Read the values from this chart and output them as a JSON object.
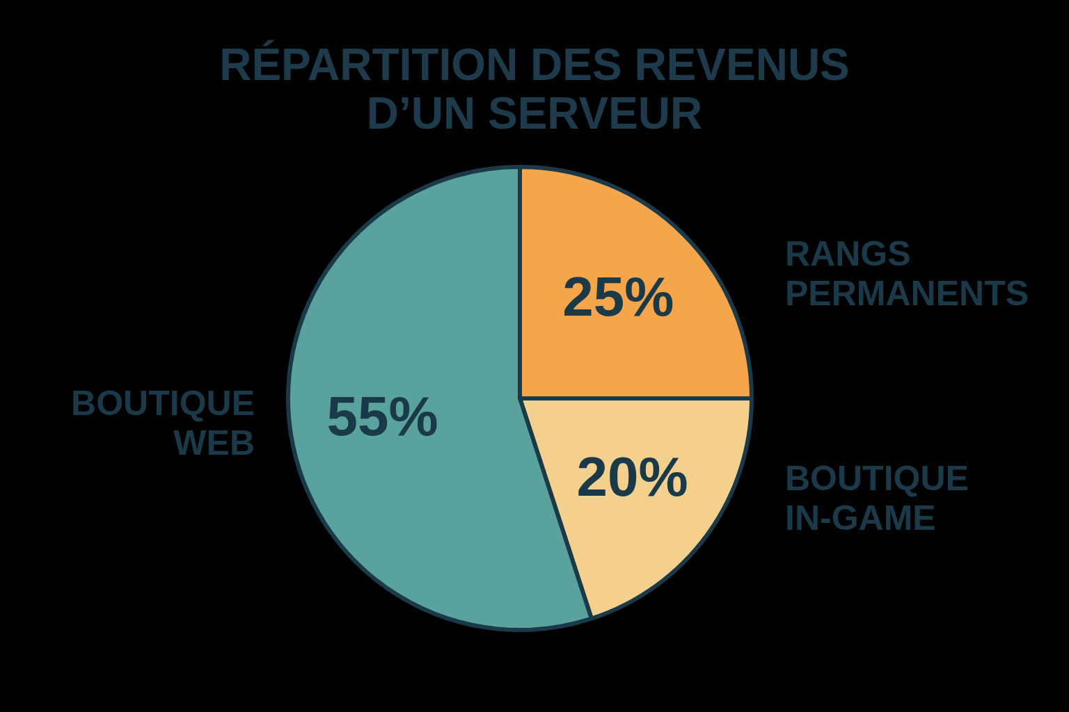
{
  "chart_data": {
    "type": "pie",
    "title": "RÉPARTITION DES REVENUS D’UN SERVEUR",
    "categories": [
      "RANGS PERMANENTS",
      "BOUTIQUE IN-GAME",
      "BOUTIQUE WEB"
    ],
    "values": [
      25,
      20,
      55
    ],
    "colors": [
      "#f5a54a",
      "#f4d08f",
      "#5aa39c"
    ],
    "value_labels": [
      "25%",
      "20%",
      "55%"
    ]
  }
}
